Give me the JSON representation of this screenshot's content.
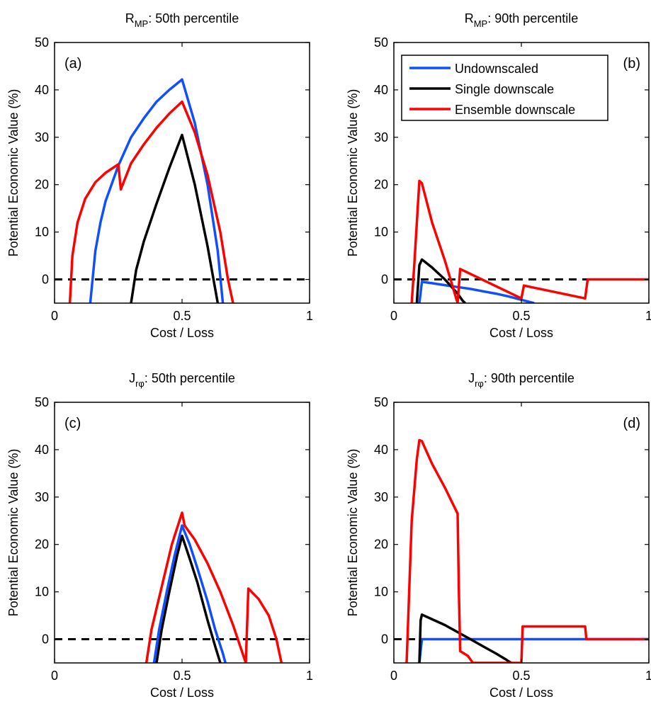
{
  "figure": {
    "legend": {
      "placement": "top-right of panel (b)",
      "entries": [
        {
          "name": "Undownscaled",
          "color": "#0f4fff"
        },
        {
          "name": "Single downscale",
          "color": "#000000"
        },
        {
          "name": "Ensemble downscale",
          "color": "#ff0000"
        }
      ]
    }
  },
  "chart_data": [
    {
      "type": "line",
      "panel": "(a)",
      "title": {
        "main": "R",
        "sub": "MP",
        "rest": ": 50th percentile"
      },
      "xlabel": "Cost / Loss",
      "ylabel": "Potential Economic Value (%)",
      "xlim": [
        0,
        1
      ],
      "ylim": [
        -5,
        50
      ],
      "xticks": [
        0,
        0.5,
        1
      ],
      "xtick_labels": [
        "0",
        "0.5",
        "1"
      ],
      "yticks": [
        0,
        10,
        20,
        30,
        40,
        50
      ],
      "ytick_labels": [
        "0",
        "10",
        "20",
        "30",
        "40",
        "50"
      ],
      "reference_line": {
        "y": 0,
        "style": "dashed"
      },
      "series": [
        {
          "name": "Undownscaled",
          "color": "#0f4fff",
          "x": [
            0.14,
            0.16,
            0.18,
            0.2,
            0.25,
            0.3,
            0.35,
            0.4,
            0.45,
            0.5,
            0.55,
            0.6,
            0.64,
            0.66
          ],
          "y": [
            -5,
            6,
            12,
            16.5,
            24,
            30,
            34,
            37.5,
            40,
            42.2,
            33,
            20,
            6,
            -5
          ]
        },
        {
          "name": "Single downscale",
          "color": "#000000",
          "x": [
            0.3,
            0.32,
            0.35,
            0.4,
            0.45,
            0.5,
            0.55,
            0.6,
            0.63,
            0.64
          ],
          "y": [
            -5,
            2,
            8,
            16,
            23.5,
            30.5,
            20,
            7,
            -2,
            -5
          ]
        },
        {
          "name": "Ensemble downscale",
          "color": "#ff0000",
          "x": [
            0.06,
            0.07,
            0.09,
            0.12,
            0.16,
            0.2,
            0.25,
            0.26,
            0.3,
            0.35,
            0.4,
            0.45,
            0.5,
            0.55,
            0.6,
            0.65,
            0.68,
            0.7
          ],
          "y": [
            -5,
            5,
            12,
            17,
            20.5,
            22.5,
            24.3,
            19,
            24.5,
            28.5,
            32,
            35,
            37.5,
            31,
            22,
            10,
            0,
            -5
          ]
        }
      ]
    },
    {
      "type": "line",
      "panel": "(b)",
      "title": {
        "main": "R",
        "sub": "MP",
        "rest": ": 90th percentile"
      },
      "xlabel": "Cost / Loss",
      "ylabel": "Potential Economic Value (%)",
      "xlim": [
        0,
        1
      ],
      "ylim": [
        -5,
        50
      ],
      "xticks": [
        0,
        0.5,
        1
      ],
      "xtick_labels": [
        "0",
        "0.5",
        "1"
      ],
      "yticks": [
        0,
        10,
        20,
        30,
        40,
        50
      ],
      "ytick_labels": [
        "0",
        "10",
        "20",
        "30",
        "40",
        "50"
      ],
      "reference_line": {
        "y": 0,
        "style": "dashed"
      },
      "series": [
        {
          "name": "Undownscaled",
          "color": "#0f4fff",
          "x": [
            0.1,
            0.11,
            0.15,
            0.2,
            0.25,
            0.3,
            0.35,
            0.4,
            0.45,
            0.5,
            0.55
          ],
          "y": [
            -5,
            -0.5,
            -0.8,
            -1.2,
            -1.6,
            -2,
            -2.5,
            -3,
            -3.6,
            -4.3,
            -5
          ]
        },
        {
          "name": "Single downscale",
          "color": "#000000",
          "x": [
            0.09,
            0.1,
            0.11,
            0.15,
            0.2,
            0.25,
            0.27,
            0.28
          ],
          "y": [
            -5,
            3,
            4.2,
            2.5,
            0,
            -3,
            -4.5,
            -5
          ]
        },
        {
          "name": "Ensemble downscale",
          "color": "#ff0000",
          "x": [
            0.07,
            0.08,
            0.1,
            0.11,
            0.15,
            0.2,
            0.25,
            0.26,
            0.5,
            0.51,
            0.75,
            0.76,
            1.0
          ],
          "y": [
            -5,
            3,
            20.8,
            20.3,
            12,
            4,
            -5,
            2.2,
            -4,
            -1.3,
            -4,
            0,
            0
          ]
        }
      ]
    },
    {
      "type": "line",
      "panel": "(c)",
      "title": {
        "main": "J",
        "sub": "rφ",
        "rest": ": 50th percentile"
      },
      "xlabel": "Cost / Loss",
      "ylabel": "Potential Economic Value (%)",
      "xlim": [
        0,
        1
      ],
      "ylim": [
        -5,
        50
      ],
      "xticks": [
        0,
        0.5,
        1
      ],
      "xtick_labels": [
        "0",
        "0.5",
        "1"
      ],
      "yticks": [
        0,
        10,
        20,
        30,
        40,
        50
      ],
      "ytick_labels": [
        "0",
        "10",
        "20",
        "30",
        "40",
        "50"
      ],
      "reference_line": {
        "y": 0,
        "style": "dashed"
      },
      "series": [
        {
          "name": "Undownscaled",
          "color": "#0f4fff",
          "x": [
            0.39,
            0.41,
            0.44,
            0.47,
            0.5,
            0.53,
            0.56,
            0.6,
            0.63,
            0.66,
            0.67
          ],
          "y": [
            -5,
            2,
            10,
            17.5,
            24,
            20,
            15,
            8,
            2,
            -3,
            -5
          ]
        },
        {
          "name": "Single downscale",
          "color": "#000000",
          "x": [
            0.4,
            0.42,
            0.45,
            0.48,
            0.5,
            0.53,
            0.56,
            0.6,
            0.63,
            0.65
          ],
          "y": [
            -5,
            2,
            10,
            17.5,
            21.8,
            17,
            12,
            4,
            -1.5,
            -5
          ]
        },
        {
          "name": "Ensemble downscale",
          "color": "#ff0000",
          "x": [
            0.36,
            0.38,
            0.42,
            0.46,
            0.5,
            0.51,
            0.55,
            0.6,
            0.65,
            0.7,
            0.75,
            0.76,
            0.8,
            0.84,
            0.87,
            0.89
          ],
          "y": [
            -5,
            2,
            11,
            20,
            26.7,
            24,
            21,
            16,
            10,
            3,
            -5,
            10.7,
            8.5,
            5,
            0,
            -5
          ]
        }
      ]
    },
    {
      "type": "line",
      "panel": "(d)",
      "title": {
        "main": "J",
        "sub": "rφ",
        "rest": ": 90th percentile"
      },
      "xlabel": "Cost / Loss",
      "ylabel": "Potential Economic Value (%)",
      "xlim": [
        0,
        1
      ],
      "ylim": [
        -5,
        50
      ],
      "xticks": [
        0,
        0.5,
        1
      ],
      "xtick_labels": [
        "0",
        "0.5",
        "1"
      ],
      "yticks": [
        0,
        10,
        20,
        30,
        40,
        50
      ],
      "ytick_labels": [
        "0",
        "10",
        "20",
        "30",
        "40",
        "50"
      ],
      "reference_line": {
        "y": 0,
        "style": "dashed"
      },
      "series": [
        {
          "name": "Undownscaled",
          "color": "#0f4fff",
          "x": [
            0.1,
            0.11,
            0.2,
            0.5,
            0.75,
            1.0
          ],
          "y": [
            -5,
            0,
            0,
            0,
            0,
            0
          ]
        },
        {
          "name": "Single downscale",
          "color": "#000000",
          "x": [
            0.1,
            0.105,
            0.11,
            0.15,
            0.2,
            0.25,
            0.3,
            0.35,
            0.4,
            0.44,
            0.46
          ],
          "y": [
            -5,
            4,
            5.2,
            4.2,
            3,
            1.5,
            0,
            -1.5,
            -3,
            -4.3,
            -5
          ]
        },
        {
          "name": "Ensemble downscale",
          "color": "#ff0000",
          "x": [
            0.05,
            0.07,
            0.09,
            0.1,
            0.11,
            0.15,
            0.2,
            0.25,
            0.255,
            0.26,
            0.29,
            0.31,
            0.5,
            0.505,
            0.75,
            0.755,
            1.0
          ],
          "y": [
            -5,
            25,
            38,
            42,
            41.8,
            37,
            32,
            26.5,
            10,
            -2.5,
            -3.5,
            -5,
            -5,
            2.7,
            2.7,
            0,
            0
          ]
        }
      ]
    }
  ]
}
